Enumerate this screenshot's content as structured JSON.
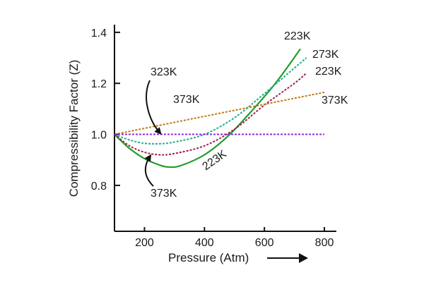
{
  "chart_data": {
    "type": "line",
    "title": "",
    "xlabel": "Pressure (Atm)",
    "ylabel": "Compressibility Factor (Z)",
    "xlim": [
      100,
      840
    ],
    "ylim": [
      0.62,
      1.43
    ],
    "xticks": [
      200,
      400,
      600,
      800
    ],
    "yticks": [
      0.8,
      1.0,
      1.2,
      1.4
    ],
    "grid": false,
    "legend": "none",
    "series": [
      {
        "color": "#1f9e2c",
        "style": "solid",
        "x": [
          100,
          150,
          200,
          250,
          280,
          320,
          400,
          480,
          560,
          640,
          720
        ],
        "y": [
          1.0,
          0.945,
          0.905,
          0.88,
          0.872,
          0.877,
          0.92,
          0.995,
          1.095,
          1.205,
          1.335
        ]
      },
      {
        "color": "#1fae8a",
        "style": "dotted",
        "x": [
          100,
          150,
          200,
          250,
          300,
          400,
          500,
          600,
          700,
          740
        ],
        "y": [
          1.0,
          0.978,
          0.965,
          0.963,
          0.97,
          1.0,
          1.065,
          1.16,
          1.26,
          1.3
        ]
      },
      {
        "color": "#a0204a",
        "style": "dotted",
        "x": [
          100,
          150,
          200,
          250,
          300,
          400,
          500,
          600,
          700,
          740
        ],
        "y": [
          1.0,
          0.955,
          0.93,
          0.92,
          0.925,
          0.955,
          1.02,
          1.115,
          1.2,
          1.24
        ]
      },
      {
        "color": "#c07a14",
        "style": "dotted",
        "x": [
          100,
          800
        ],
        "y": [
          1.0,
          1.165
        ]
      },
      {
        "color": "#8a2be2",
        "style": "dotted",
        "x": [
          100,
          800
        ],
        "y": [
          1.0,
          1.0
        ]
      }
    ],
    "annotations": [
      {
        "text": "223K"
      },
      {
        "text": "273K"
      },
      {
        "text": "223K"
      },
      {
        "text": "373K"
      },
      {
        "text": "323K"
      },
      {
        "text": "373K"
      },
      {
        "text": "223K"
      },
      {
        "text": "373K"
      }
    ]
  }
}
